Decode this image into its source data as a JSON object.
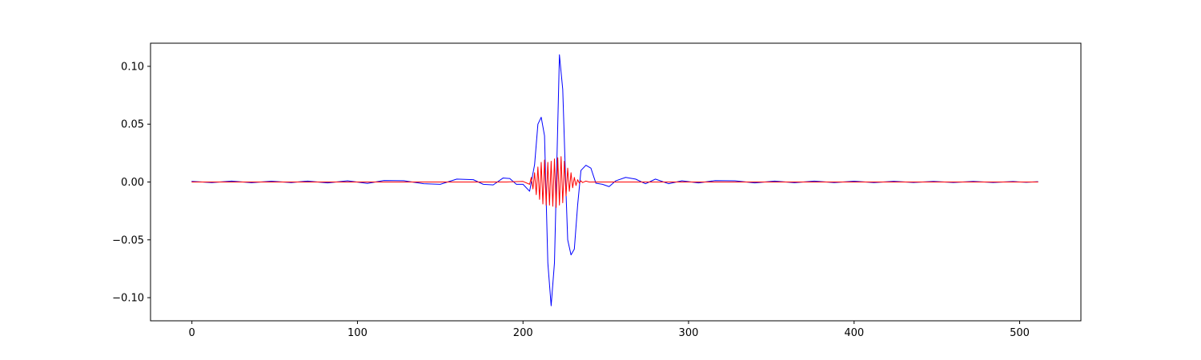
{
  "chart_data": {
    "type": "line",
    "title": "",
    "xlabel": "",
    "ylabel": "",
    "xlim": [
      -25,
      537
    ],
    "ylim": [
      -0.12,
      0.12
    ],
    "grid": false,
    "legend": "none",
    "x_ticks": [
      {
        "value": 0,
        "label": "0"
      },
      {
        "value": 100,
        "label": "100"
      },
      {
        "value": 200,
        "label": "200"
      },
      {
        "value": 300,
        "label": "300"
      },
      {
        "value": 400,
        "label": "400"
      },
      {
        "value": 500,
        "label": "500"
      }
    ],
    "y_ticks": [
      {
        "value": -0.1,
        "label": "−0.10"
      },
      {
        "value": -0.05,
        "label": "−0.05"
      },
      {
        "value": 0.0,
        "label": "0.00"
      },
      {
        "value": 0.05,
        "label": "0.05"
      },
      {
        "value": 0.1,
        "label": "0.10"
      }
    ],
    "series": [
      {
        "color": "#0000ff",
        "x": [
          0,
          12,
          24,
          36,
          48,
          60,
          70,
          82,
          94,
          106,
          116,
          128,
          140,
          150,
          160,
          170,
          176,
          182,
          188,
          192,
          196,
          200,
          204,
          207,
          209,
          211,
          213,
          215,
          217,
          219,
          221,
          222,
          224,
          226,
          227,
          229,
          231,
          233,
          235,
          238,
          241,
          244,
          248,
          252,
          256,
          262,
          268,
          274,
          280,
          288,
          296,
          306,
          316,
          328,
          340,
          352,
          364,
          376,
          388,
          400,
          412,
          424,
          436,
          448,
          460,
          472,
          484,
          496,
          504,
          511
        ],
        "values": [
          0.0005,
          -0.0005,
          0.0008,
          -0.0006,
          0.0007,
          -0.0005,
          0.0008,
          -0.0008,
          0.001,
          -0.0012,
          0.0013,
          0.0011,
          -0.0015,
          -0.002,
          0.0025,
          0.002,
          -0.002,
          -0.0025,
          0.0035,
          0.003,
          -0.002,
          -0.002,
          -0.008,
          0.015,
          0.05,
          0.056,
          0.04,
          -0.07,
          -0.107,
          -0.07,
          0.05,
          0.11,
          0.08,
          -0.01,
          -0.05,
          -0.063,
          -0.058,
          -0.02,
          0.01,
          0.0145,
          0.012,
          -0.001,
          -0.002,
          -0.004,
          0.001,
          0.004,
          0.0025,
          -0.0015,
          0.0025,
          -0.0015,
          0.001,
          -0.0008,
          0.0012,
          0.001,
          -0.0008,
          0.0008,
          -0.0006,
          0.0008,
          -0.0005,
          0.0007,
          -0.0005,
          0.0006,
          -0.0004,
          0.0005,
          -0.0004,
          0.0005,
          -0.0004,
          0.0004,
          -0.0003,
          0.0003
        ]
      },
      {
        "color": "#ff0000",
        "x": [
          0,
          40,
          80,
          120,
          160,
          190,
          200,
          204,
          205,
          206,
          207,
          208,
          209,
          210,
          211,
          212,
          213,
          214,
          215,
          216,
          217,
          218,
          219,
          220,
          221,
          222,
          223,
          224,
          225,
          226,
          227,
          228,
          229,
          230,
          231,
          232,
          233,
          234,
          235,
          236,
          238,
          240,
          250,
          300,
          400,
          511
        ],
        "values": [
          0,
          0,
          0,
          0,
          0,
          0,
          0.0005,
          -0.002,
          0.004,
          -0.006,
          0.008,
          -0.011,
          0.013,
          -0.015,
          0.017,
          -0.019,
          0.019,
          -0.02,
          0.017,
          -0.02,
          0.018,
          -0.021,
          0.02,
          -0.022,
          0.021,
          -0.02,
          0.022,
          -0.018,
          0.018,
          -0.012,
          0.012,
          -0.008,
          0.008,
          -0.005,
          0.004,
          -0.003,
          0.002,
          -0.001,
          0.001,
          -0.0005,
          0.0008,
          0.0,
          0,
          0,
          0,
          0
        ]
      }
    ]
  }
}
